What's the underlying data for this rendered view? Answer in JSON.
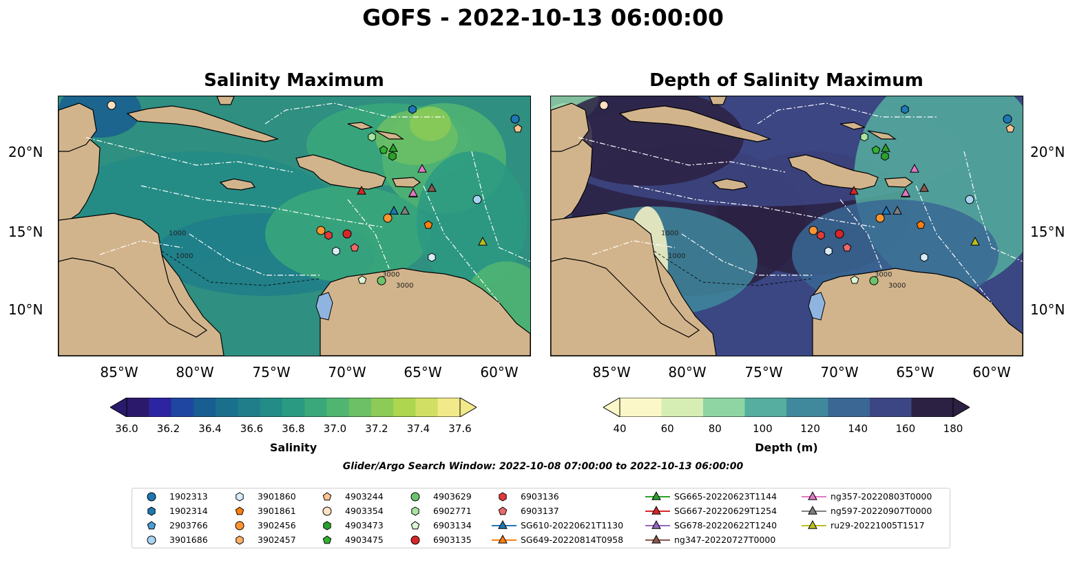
{
  "suptitle": "GOFS - 2022-10-13 06:00:00",
  "panels": [
    {
      "title": "Salinity Maximum",
      "colorbar_label": "Salinity",
      "colorbar_ticks": [
        "36.0",
        "36.2",
        "36.4",
        "36.6",
        "36.8",
        "37.0",
        "37.2",
        "37.4",
        "37.6"
      ],
      "colors": [
        "#2b1a6b",
        "#2c24a0",
        "#1f46a0",
        "#185e92",
        "#1a6f8c",
        "#1f7e89",
        "#238c86",
        "#2b9a82",
        "#3aa87b",
        "#51b572",
        "#6dc065",
        "#8ccb57",
        "#aed64f",
        "#d1e064",
        "#f2e98b"
      ],
      "field_base": "#2f8f80"
    },
    {
      "title": "Depth of Salinity Maximum",
      "colorbar_label": "Depth (m)",
      "colorbar_ticks": [
        "40",
        "60",
        "80",
        "100",
        "120",
        "140",
        "160",
        "180"
      ],
      "colors": [
        "#fbf7c8",
        "#d6eeb3",
        "#8fd5a4",
        "#55ae9f",
        "#40889c",
        "#3a6794",
        "#3d4684",
        "#2c2142"
      ],
      "field_base": "#3a4782"
    }
  ],
  "lon_ticks": [
    "85°W",
    "80°W",
    "75°W",
    "70°W",
    "65°W",
    "60°W"
  ],
  "lat_ticks": [
    "20°N",
    "15°N",
    "10°N"
  ],
  "map_labels": [
    "1000",
    "1000",
    "3000",
    "3000"
  ],
  "window_text": "Glider/Argo Search Window: 2022-10-08 07:00:00 to 2022-10-13 06:00:00",
  "land_color": "#d2b48c",
  "legend": [
    {
      "label": "1902313",
      "marker": "circle",
      "color": "#1f77b4"
    },
    {
      "label": "1902314",
      "marker": "hexagon",
      "color": "#1f77b4"
    },
    {
      "label": "2903766",
      "marker": "pentagon",
      "color": "#4b9bd8"
    },
    {
      "label": "3901686",
      "marker": "circle",
      "color": "#a9d3f0"
    },
    {
      "label": "3901860",
      "marker": "hexagon",
      "color": "#d8ecf8"
    },
    {
      "label": "3901861",
      "marker": "pentagon",
      "color": "#ff7f0e"
    },
    {
      "label": "3902456",
      "marker": "circle",
      "color": "#ff9530"
    },
    {
      "label": "3902457",
      "marker": "hexagon",
      "color": "#ffb066"
    },
    {
      "label": "4903244",
      "marker": "pentagon",
      "color": "#ffc48f"
    },
    {
      "label": "4903354",
      "marker": "circle",
      "color": "#ffe0c2"
    },
    {
      "label": "4903473",
      "marker": "hexagon",
      "color": "#2ca02c"
    },
    {
      "label": "4903475",
      "marker": "pentagon",
      "color": "#32b032"
    },
    {
      "label": "4903629",
      "marker": "circle",
      "color": "#6cc46c"
    },
    {
      "label": "6902771",
      "marker": "hexagon",
      "color": "#a9e5a0"
    },
    {
      "label": "6903134",
      "marker": "pentagon",
      "color": "#dcf5d6"
    },
    {
      "label": "6903135",
      "marker": "circle",
      "color": "#d62728"
    },
    {
      "label": "6903136",
      "marker": "hexagon",
      "color": "#e03a3a"
    },
    {
      "label": "6903137",
      "marker": "pentagon",
      "color": "#ec6a6a"
    },
    {
      "label": "SG610-20220621T1130",
      "marker": "triangle",
      "color": "#1f77b4"
    },
    {
      "label": "SG649-20220814T0958",
      "marker": "triangle",
      "color": "#ff7f0e"
    },
    {
      "label": "SG665-20220623T1144",
      "marker": "triangle",
      "color": "#2ca02c"
    },
    {
      "label": "SG667-20220629T1254",
      "marker": "triangle",
      "color": "#d62728"
    },
    {
      "label": "SG678-20220622T1240",
      "marker": "triangle",
      "color": "#9467bd"
    },
    {
      "label": "ng347-20220727T0000",
      "marker": "triangle",
      "color": "#8c564b"
    },
    {
      "label": "ng357-20220803T0000",
      "marker": "triangle",
      "color": "#e377c2"
    },
    {
      "label": "ng597-20220907T0000",
      "marker": "triangle",
      "color": "#7f7f7f"
    },
    {
      "label": "ru29-20221005T1517",
      "marker": "triangle",
      "color": "#bcbd22"
    }
  ]
}
